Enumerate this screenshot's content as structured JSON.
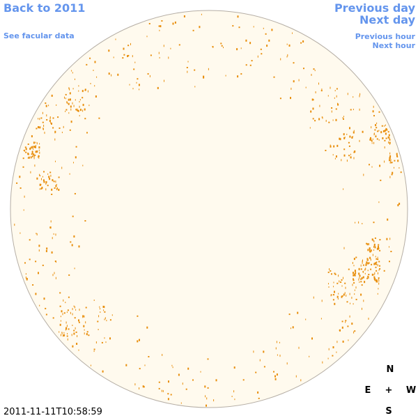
{
  "nav": {
    "back": "Back to 2011",
    "facular": "See facular data",
    "previous_day": "Previous day",
    "next_day": "Next day",
    "previous_hour": "Previous hour",
    "next_hour": "Next hour"
  },
  "timestamp": "2011-11-11T10:58:59",
  "compass": {
    "north": "N",
    "east": "E",
    "center": "+",
    "west": "W",
    "south": "S"
  }
}
